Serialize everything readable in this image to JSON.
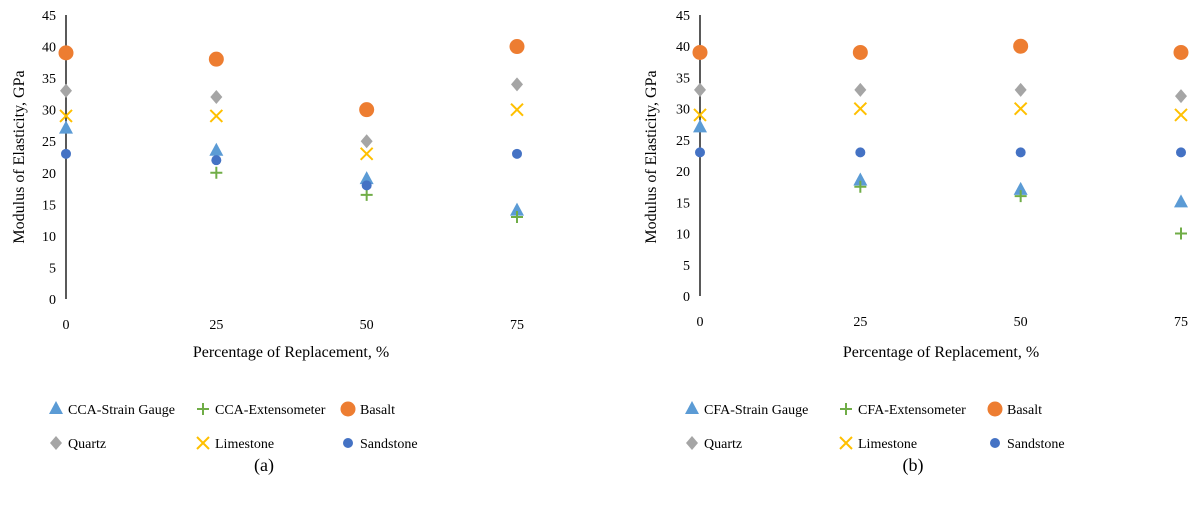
{
  "chart_data": [
    {
      "type": "scatter",
      "panel_label": "(a)",
      "xlabel": "Percentage of Replacement, %",
      "ylabel": "Modulus of Elasticity, GPa",
      "x_ticks": [
        "0",
        "25",
        "50",
        "75"
      ],
      "x": [
        0,
        25,
        50,
        75
      ],
      "ylim": [
        0,
        45
      ],
      "y_ticks": [
        "0",
        "5",
        "10",
        "15",
        "20",
        "25",
        "30",
        "35",
        "40",
        "45"
      ],
      "grid": false,
      "legend_position": "bottom",
      "series": [
        {
          "name": "CCA-Strain Gauge",
          "marker": "triangle",
          "color": "#5b9bd5",
          "values": [
            27,
            23.5,
            19,
            14
          ]
        },
        {
          "name": "CCA-Extensometer",
          "marker": "plus",
          "color": "#70ad47",
          "values": [
            null,
            20,
            16.5,
            13
          ]
        },
        {
          "name": "Basalt",
          "marker": "circle-large",
          "color": "#ed7d31",
          "values": [
            39,
            38,
            30,
            40
          ]
        },
        {
          "name": "Quartz",
          "marker": "diamond",
          "color": "#a5a5a5",
          "values": [
            33,
            32,
            25,
            34
          ]
        },
        {
          "name": "Limestone",
          "marker": "x",
          "color": "#ffc000",
          "values": [
            29,
            29,
            23,
            30
          ]
        },
        {
          "name": "Sandstone",
          "marker": "circle",
          "color": "#4472c4",
          "values": [
            23,
            22,
            18,
            23
          ]
        }
      ]
    },
    {
      "type": "scatter",
      "panel_label": "(b)",
      "xlabel": "Percentage of Replacement, %",
      "ylabel": "Modulus of Elasticity, GPa",
      "x_ticks": [
        "0",
        "25",
        "50",
        "75"
      ],
      "x": [
        0,
        25,
        50,
        75
      ],
      "ylim": [
        0,
        45
      ],
      "y_ticks": [
        "0",
        "5",
        "10",
        "15",
        "20",
        "25",
        "30",
        "35",
        "40",
        "45"
      ],
      "grid": false,
      "legend_position": "bottom",
      "series": [
        {
          "name": "CFA-Strain Gauge",
          "marker": "triangle",
          "color": "#5b9bd5",
          "values": [
            27,
            18.5,
            17,
            15
          ]
        },
        {
          "name": "CFA-Extensometer",
          "marker": "plus",
          "color": "#70ad47",
          "values": [
            null,
            17.5,
            16,
            10
          ]
        },
        {
          "name": "Basalt",
          "marker": "circle-large",
          "color": "#ed7d31",
          "values": [
            39,
            39,
            40,
            39
          ]
        },
        {
          "name": "Quartz",
          "marker": "diamond",
          "color": "#a5a5a5",
          "values": [
            33,
            33,
            33,
            32
          ]
        },
        {
          "name": "Limestone",
          "marker": "x",
          "color": "#ffc000",
          "values": [
            29,
            30,
            30,
            29
          ]
        },
        {
          "name": "Sandstone",
          "marker": "circle",
          "color": "#4472c4",
          "values": [
            23,
            23,
            23,
            23
          ]
        }
      ]
    }
  ]
}
